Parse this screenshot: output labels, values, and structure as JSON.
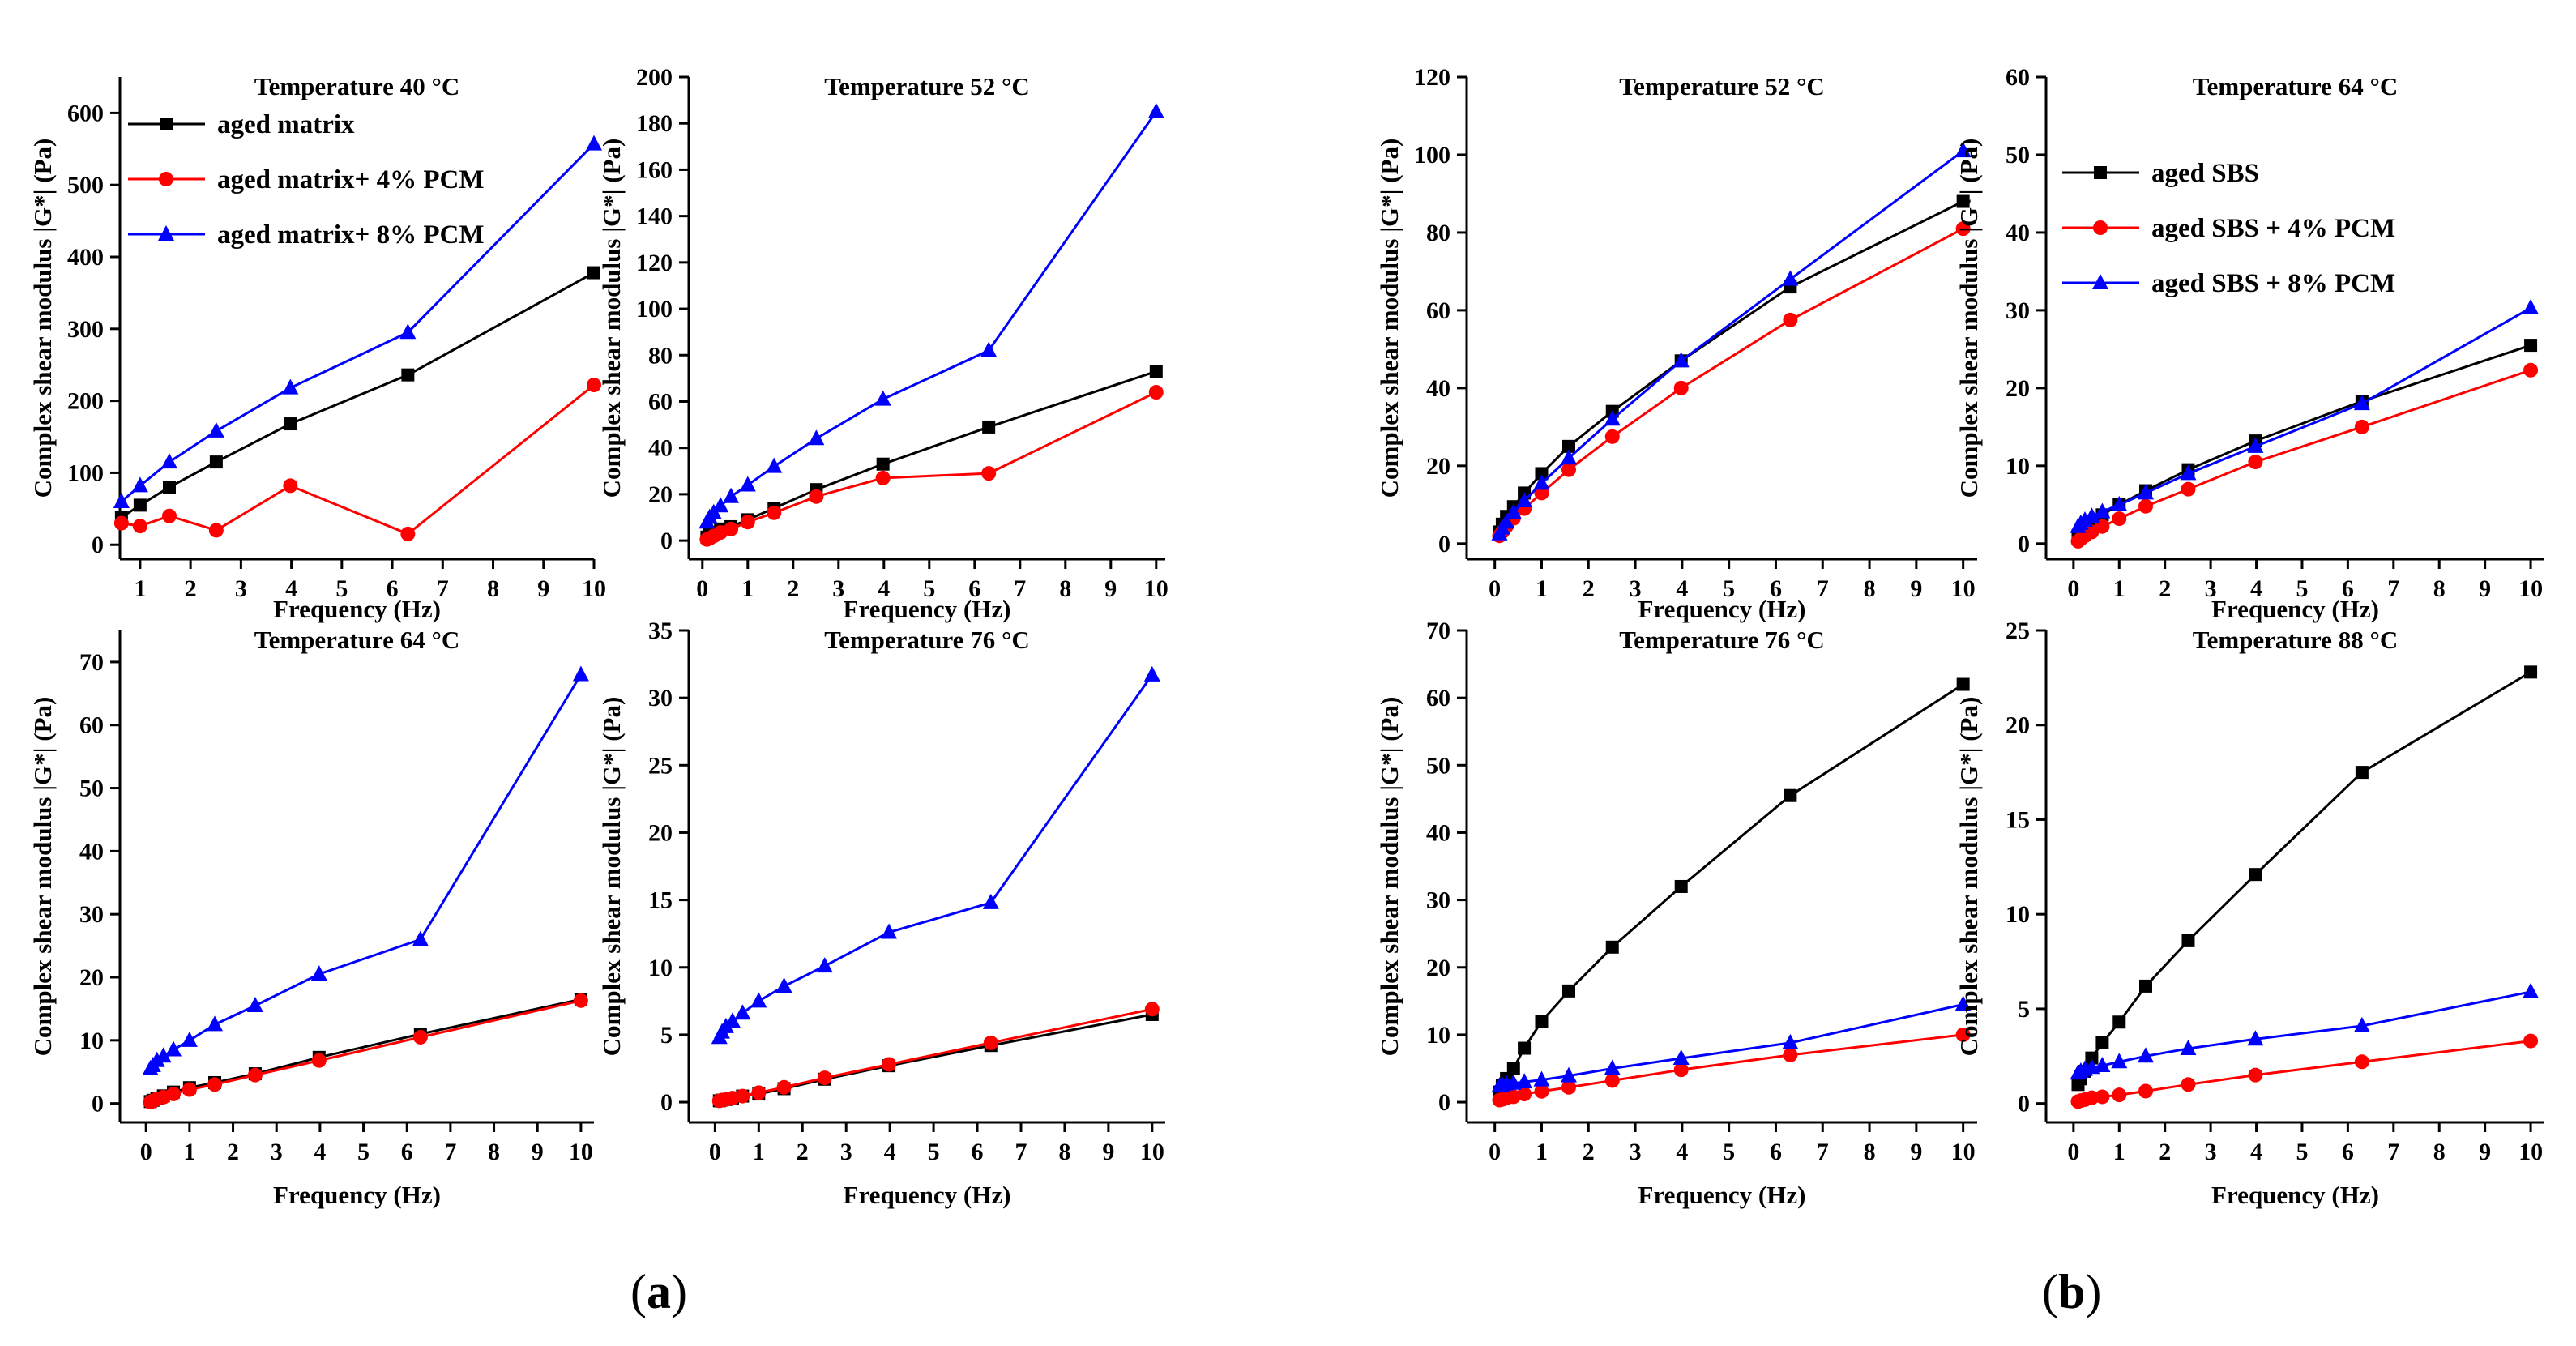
{
  "figure": {
    "label_a": "a",
    "label_b": "b",
    "legend_a": [
      "aged matrix",
      "aged matrix+ 4% PCM",
      "aged matrix+ 8% PCM"
    ],
    "legend_b": [
      "aged SBS",
      "aged SBS + 4% PCM",
      "aged SBS + 8% PCM"
    ],
    "colors": {
      "series1": "#000000",
      "series2": "#ff0000",
      "series3": "#0000ff"
    }
  },
  "chart_data": [
    {
      "id": "a-40",
      "type": "line",
      "group": "a",
      "title": "Temperature 40 °C",
      "xlabel": "Frequency (Hz)",
      "ylabel": "Complex shear modulus |G*| (Pa)",
      "xlim": [
        0.6,
        10
      ],
      "ylim": [
        -20,
        650
      ],
      "xticks": [
        1,
        2,
        3,
        4,
        5,
        6,
        7,
        8,
        9,
        10
      ],
      "yticks": [
        0,
        100,
        200,
        300,
        400,
        500,
        600
      ],
      "legend": {
        "placement": "top-left",
        "labels": [
          "aged matrix",
          "aged matrix+ 4% PCM",
          "aged matrix+ 8% PCM"
        ]
      },
      "series": [
        {
          "name": "aged matrix",
          "x": [
            0.63,
            1,
            1.58,
            2.51,
            3.98,
            6.31,
            10
          ],
          "values": [
            38,
            55,
            80,
            115,
            168,
            236,
            378
          ]
        },
        {
          "name": "aged matrix+ 4% PCM",
          "x": [
            0.63,
            1,
            1.58,
            2.51,
            3.98,
            6.31,
            10
          ],
          "values": [
            30,
            26,
            40,
            20,
            82,
            15,
            222
          ]
        },
        {
          "name": "aged matrix+ 8% PCM",
          "x": [
            0.63,
            1,
            1.58,
            2.51,
            3.98,
            6.31,
            10
          ],
          "values": [
            60,
            82,
            115,
            158,
            218,
            295,
            557
          ]
        }
      ]
    },
    {
      "id": "a-52",
      "type": "line",
      "group": "a",
      "title": "Temperature 52 °C",
      "xlabel": "Frequency (Hz)",
      "ylabel": "Complex shear modulus |G*| (Pa)",
      "xlim": [
        -0.3,
        10.2
      ],
      "ylim": [
        -8,
        200
      ],
      "xticks": [
        0,
        1,
        2,
        3,
        4,
        5,
        6,
        7,
        8,
        9,
        10
      ],
      "yticks": [
        0,
        20,
        40,
        60,
        80,
        100,
        120,
        140,
        160,
        180,
        200
      ],
      "series": [
        {
          "name": "aged matrix",
          "x": [
            0.1,
            0.16,
            0.25,
            0.4,
            0.63,
            1,
            1.58,
            2.51,
            3.98,
            6.31,
            10
          ],
          "values": [
            1.5,
            2.5,
            3.5,
            5,
            6,
            9,
            14,
            22,
            33,
            49,
            73
          ]
        },
        {
          "name": "aged matrix+ 4% PCM",
          "x": [
            0.1,
            0.16,
            0.25,
            0.4,
            0.63,
            1,
            1.58,
            2.51,
            3.98,
            6.31,
            10
          ],
          "values": [
            0.5,
            1,
            2,
            3.5,
            5,
            8,
            12,
            19,
            27,
            29,
            64
          ]
        },
        {
          "name": "aged matrix+ 8% PCM",
          "x": [
            0.1,
            0.16,
            0.25,
            0.4,
            0.63,
            1,
            1.58,
            2.51,
            3.98,
            6.31,
            10
          ],
          "values": [
            8,
            10,
            12,
            15,
            19,
            24,
            32,
            44,
            61,
            82,
            185
          ]
        }
      ]
    },
    {
      "id": "a-64",
      "type": "line",
      "group": "a",
      "title": "Temperature 64 °C",
      "xlabel": "Frequency (Hz)",
      "ylabel": "Complex shear modulus |G*| (Pa)",
      "xlim": [
        -0.6,
        10.3
      ],
      "ylim": [
        -3,
        75
      ],
      "xticks": [
        0,
        1,
        2,
        3,
        4,
        5,
        6,
        7,
        8,
        9,
        10
      ],
      "yticks": [
        0,
        10,
        20,
        30,
        40,
        50,
        60,
        70
      ],
      "series": [
        {
          "name": "aged matrix",
          "x": [
            0.1,
            0.16,
            0.25,
            0.4,
            0.63,
            1,
            1.58,
            2.51,
            3.98,
            6.31,
            10
          ],
          "values": [
            0.3,
            0.5,
            0.8,
            1.2,
            1.8,
            2.5,
            3.3,
            4.7,
            7.3,
            11,
            16.5
          ]
        },
        {
          "name": "aged matrix+ 4% PCM",
          "x": [
            0.1,
            0.16,
            0.25,
            0.4,
            0.63,
            1,
            1.58,
            2.51,
            3.98,
            6.31,
            10
          ],
          "values": [
            0.2,
            0.4,
            0.7,
            1,
            1.5,
            2.2,
            3,
            4.5,
            6.8,
            10.5,
            16.3
          ]
        },
        {
          "name": "aged matrix+ 8% PCM",
          "x": [
            0.1,
            0.16,
            0.25,
            0.4,
            0.63,
            1,
            1.58,
            2.51,
            3.98,
            6.31,
            10
          ],
          "values": [
            5.5,
            6,
            6.8,
            7.5,
            8.5,
            10,
            12.5,
            15.5,
            20.5,
            26,
            68
          ]
        }
      ]
    },
    {
      "id": "a-76",
      "type": "line",
      "group": "a",
      "title": "Temperature 76 °C",
      "xlabel": "Frequency (Hz)",
      "ylabel": "Complex shear modulus |G*| (Pa)",
      "xlim": [
        -0.6,
        10.3
      ],
      "ylim": [
        -1.5,
        35
      ],
      "xticks": [
        0,
        1,
        2,
        3,
        4,
        5,
        6,
        7,
        8,
        9,
        10
      ],
      "yticks": [
        0,
        5,
        10,
        15,
        20,
        25,
        30,
        35
      ],
      "series": [
        {
          "name": "aged matrix",
          "x": [
            0.1,
            0.16,
            0.25,
            0.4,
            0.63,
            1,
            1.58,
            2.51,
            3.98,
            6.31,
            10
          ],
          "values": [
            0.1,
            0.15,
            0.2,
            0.3,
            0.45,
            0.6,
            1,
            1.7,
            2.7,
            4.2,
            6.5
          ]
        },
        {
          "name": "aged matrix+ 4% PCM",
          "x": [
            0.1,
            0.16,
            0.25,
            0.4,
            0.63,
            1,
            1.58,
            2.51,
            3.98,
            6.31,
            10
          ],
          "values": [
            0.1,
            0.15,
            0.2,
            0.3,
            0.45,
            0.7,
            1.1,
            1.8,
            2.8,
            4.4,
            6.9
          ]
        },
        {
          "name": "aged matrix+ 8% PCM",
          "x": [
            0.1,
            0.16,
            0.25,
            0.4,
            0.63,
            1,
            1.58,
            2.51,
            3.98,
            6.31,
            10
          ],
          "values": [
            4.8,
            5.2,
            5.6,
            6,
            6.6,
            7.5,
            8.6,
            10.1,
            12.6,
            14.8,
            31.7
          ]
        }
      ]
    },
    {
      "id": "b-52",
      "type": "line",
      "group": "b",
      "title": "Temperature 52 °C",
      "xlabel": "Frequency (Hz)",
      "ylabel": "Complex shear modulus |G*| (Pa)",
      "xlim": [
        -0.6,
        10.3
      ],
      "ylim": [
        -4,
        120
      ],
      "xticks": [
        0,
        1,
        2,
        3,
        4,
        5,
        6,
        7,
        8,
        9,
        10
      ],
      "yticks": [
        0,
        20,
        40,
        60,
        80,
        100,
        120
      ],
      "series": [
        {
          "name": "aged SBS",
          "x": [
            0.1,
            0.16,
            0.25,
            0.4,
            0.63,
            1,
            1.58,
            2.51,
            3.98,
            6.31,
            10
          ],
          "values": [
            3,
            5,
            7,
            9.5,
            13,
            18,
            25,
            34,
            47,
            66,
            88
          ]
        },
        {
          "name": "aged SBS + 4% PCM",
          "x": [
            0.1,
            0.16,
            0.25,
            0.4,
            0.63,
            1,
            1.58,
            2.51,
            3.98,
            6.31,
            10
          ],
          "values": [
            2,
            3,
            4.5,
            6.5,
            9,
            13,
            19,
            27.5,
            40,
            57.5,
            81
          ]
        },
        {
          "name": "aged SBS + 8% PCM",
          "x": [
            0.1,
            0.16,
            0.25,
            0.4,
            0.63,
            1,
            1.58,
            2.51,
            3.98,
            6.31,
            10
          ],
          "values": [
            2.5,
            4,
            5.5,
            8,
            11,
            15.5,
            22,
            32,
            47,
            68,
            101
          ]
        }
      ]
    },
    {
      "id": "b-64",
      "type": "line",
      "group": "b",
      "title": "Temperature 64 °C",
      "xlabel": "Frequency (Hz)",
      "ylabel": "Complex shear modulus |G*| (Pa)",
      "xlim": [
        -0.6,
        10.3
      ],
      "ylim": [
        -2,
        60
      ],
      "xticks": [
        0,
        1,
        2,
        3,
        4,
        5,
        6,
        7,
        8,
        9,
        10
      ],
      "yticks": [
        0,
        10,
        20,
        30,
        40,
        50,
        60
      ],
      "legend": {
        "placement": "center-left",
        "labels": [
          "aged SBS",
          "aged SBS + 4% PCM",
          "aged SBS + 8% PCM"
        ]
      },
      "series": [
        {
          "name": "aged SBS",
          "x": [
            0.1,
            0.16,
            0.25,
            0.4,
            0.63,
            1,
            1.58,
            2.51,
            3.98,
            6.31,
            10
          ],
          "values": [
            1,
            1.5,
            2,
            2.8,
            3.7,
            5,
            6.8,
            9.5,
            13.2,
            18.3,
            25.5
          ]
        },
        {
          "name": "aged SBS + 4% PCM",
          "x": [
            0.1,
            0.16,
            0.25,
            0.4,
            0.63,
            1,
            1.58,
            2.51,
            3.98,
            6.31,
            10
          ],
          "values": [
            0.3,
            0.6,
            1,
            1.5,
            2.2,
            3.2,
            4.8,
            7,
            10.5,
            15,
            22.3
          ]
        },
        {
          "name": "aged SBS + 8% PCM",
          "x": [
            0.1,
            0.16,
            0.25,
            0.4,
            0.63,
            1,
            1.58,
            2.51,
            3.98,
            6.31,
            10
          ],
          "values": [
            2.2,
            2.6,
            3,
            3.5,
            4.1,
            5,
            6.5,
            9,
            12.5,
            18,
            30.3
          ]
        }
      ]
    },
    {
      "id": "b-76",
      "type": "line",
      "group": "b",
      "title": "Temperature 76 °C",
      "xlabel": "Frequency (Hz)",
      "ylabel": "Complex shear modulus |G*| (Pa)",
      "xlim": [
        -0.6,
        10.3
      ],
      "ylim": [
        -3,
        70
      ],
      "xticks": [
        0,
        1,
        2,
        3,
        4,
        5,
        6,
        7,
        8,
        9,
        10
      ],
      "yticks": [
        0,
        10,
        20,
        30,
        40,
        50,
        60,
        70
      ],
      "series": [
        {
          "name": "aged SBS",
          "x": [
            0.1,
            0.16,
            0.25,
            0.4,
            0.63,
            1,
            1.58,
            2.51,
            3.98,
            6.31,
            10
          ],
          "values": [
            1.5,
            2.5,
            3.5,
            5,
            8,
            12,
            16.5,
            23,
            32,
            45.5,
            62
          ]
        },
        {
          "name": "aged SBS + 4% PCM",
          "x": [
            0.1,
            0.16,
            0.25,
            0.4,
            0.63,
            1,
            1.58,
            2.51,
            3.98,
            6.31,
            10
          ],
          "values": [
            0.3,
            0.4,
            0.6,
            0.8,
            1.2,
            1.6,
            2.2,
            3.2,
            4.8,
            7,
            10
          ]
        },
        {
          "name": "aged SBS + 8% PCM",
          "x": [
            0.1,
            0.16,
            0.25,
            0.4,
            0.63,
            1,
            1.58,
            2.51,
            3.98,
            6.31,
            10
          ],
          "values": [
            2.4,
            2.5,
            2.7,
            2.8,
            3,
            3.3,
            3.9,
            5,
            6.5,
            8.8,
            14.5
          ]
        }
      ]
    },
    {
      "id": "b-88",
      "type": "line",
      "group": "b",
      "title": "Temperature 88 °C",
      "xlabel": "Frequency (Hz)",
      "ylabel": "Complex shear modulus |G*| (Pa)",
      "xlim": [
        -0.6,
        10.3
      ],
      "ylim": [
        -1,
        25
      ],
      "xticks": [
        0,
        1,
        2,
        3,
        4,
        5,
        6,
        7,
        8,
        9,
        10
      ],
      "yticks": [
        0,
        5,
        10,
        15,
        20,
        25
      ],
      "series": [
        {
          "name": "aged SBS",
          "x": [
            0.1,
            0.16,
            0.25,
            0.4,
            0.63,
            1,
            1.58,
            2.51,
            3.98,
            6.31,
            10
          ],
          "values": [
            1,
            1.3,
            1.7,
            2.4,
            3.2,
            4.3,
            6.2,
            8.6,
            12.1,
            17.5,
            22.8
          ]
        },
        {
          "name": "aged SBS + 4% PCM",
          "x": [
            0.1,
            0.16,
            0.25,
            0.4,
            0.63,
            1,
            1.58,
            2.51,
            3.98,
            6.31,
            10
          ],
          "values": [
            0.1,
            0.15,
            0.2,
            0.3,
            0.35,
            0.45,
            0.65,
            1,
            1.5,
            2.2,
            3.3
          ]
        },
        {
          "name": "aged SBS + 8% PCM",
          "x": [
            0.1,
            0.16,
            0.25,
            0.4,
            0.63,
            1,
            1.58,
            2.51,
            3.98,
            6.31,
            10
          ],
          "values": [
            1.6,
            1.7,
            1.8,
            1.9,
            2,
            2.2,
            2.5,
            2.9,
            3.4,
            4.1,
            5.9
          ]
        }
      ]
    }
  ]
}
